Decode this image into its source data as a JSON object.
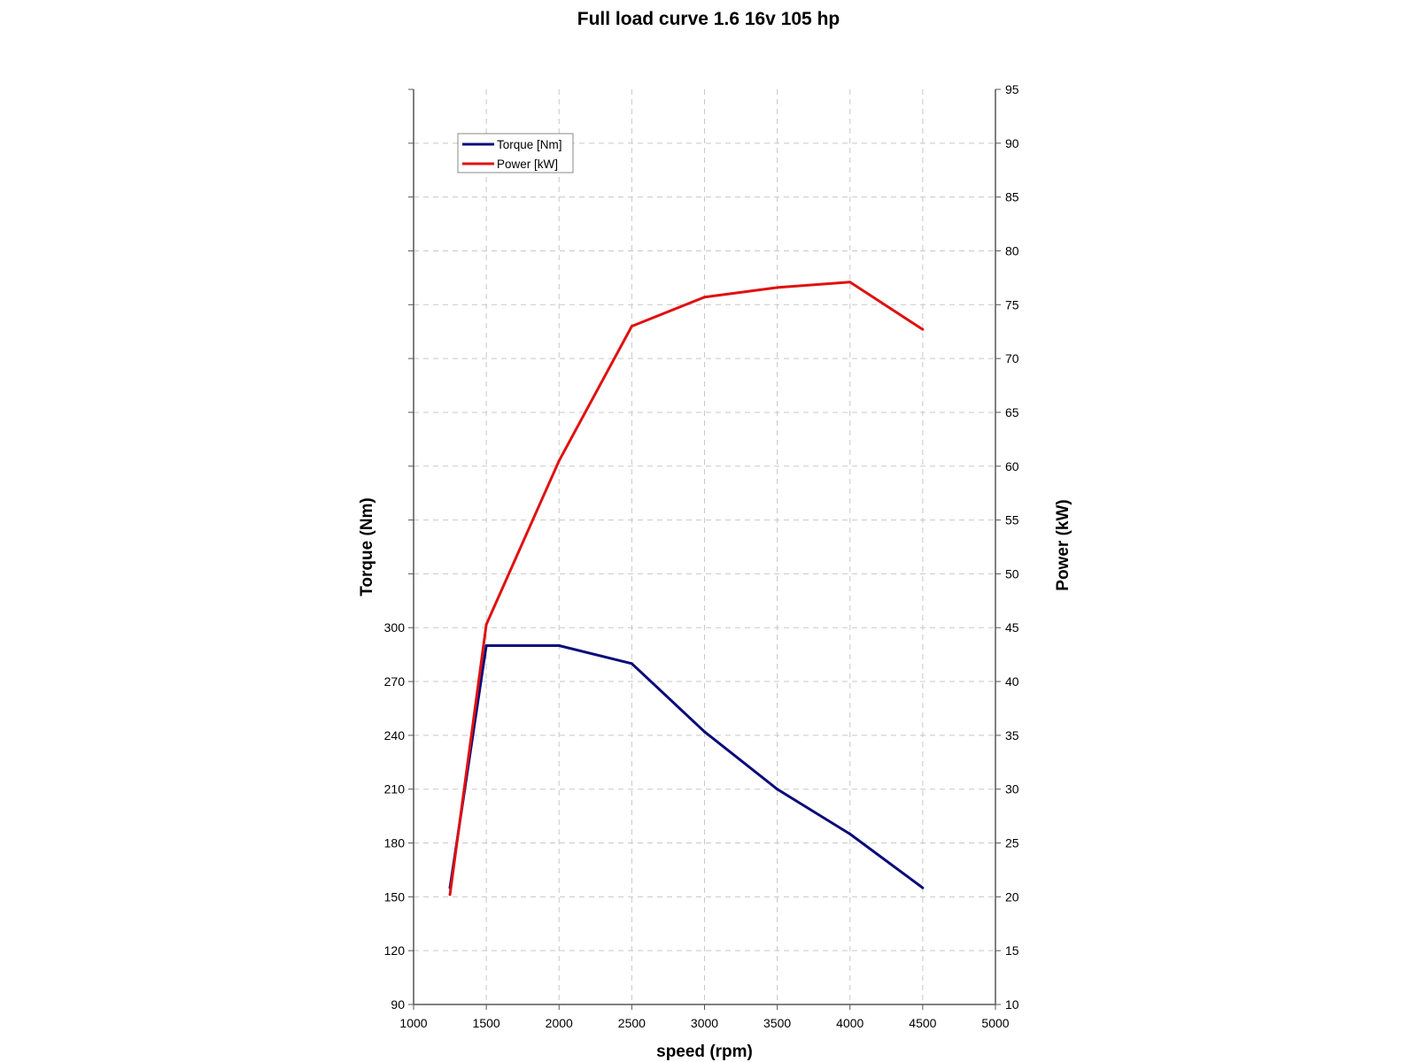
{
  "chart_data": {
    "type": "line",
    "title": "Full load curve 1.6 16v 105 hp",
    "xlabel": "speed (rpm)",
    "ylabel_left": "Torque (Nm)",
    "ylabel_right": "Power (kW)",
    "xlim": [
      1000,
      5000
    ],
    "ylim_left": [
      90,
      600
    ],
    "ylim_right": [
      10,
      95
    ],
    "x_ticks": [
      1000,
      1500,
      2000,
      2500,
      3000,
      3500,
      4000,
      4500,
      5000
    ],
    "y_left_ticks": [
      90,
      120,
      150,
      180,
      210,
      240,
      270,
      300
    ],
    "y_right_ticks": [
      10,
      15,
      20,
      25,
      30,
      35,
      40,
      45,
      50,
      55,
      60,
      65,
      70,
      75,
      80,
      85,
      90,
      95
    ],
    "grid": true,
    "legend_position": "top-left",
    "series": [
      {
        "name": "Torque [Nm]",
        "axis": "left",
        "color": "#0a0a7a",
        "x": [
          1250,
          1500,
          2000,
          2500,
          3000,
          3500,
          4000,
          4500
        ],
        "values": [
          155,
          290,
          290,
          280,
          242,
          210,
          185,
          155
        ]
      },
      {
        "name": "Power [kW]",
        "axis": "right",
        "color": "#e01010",
        "x": [
          1250,
          1500,
          2000,
          2500,
          3000,
          3500,
          4000,
          4500
        ],
        "values": [
          20.2,
          45.3,
          60.5,
          73.0,
          75.7,
          76.6,
          77.1,
          72.7
        ]
      }
    ]
  }
}
